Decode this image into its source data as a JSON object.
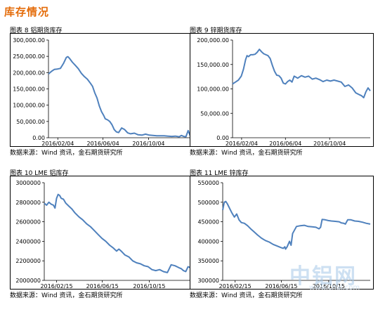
{
  "section": {
    "title": "库存情况"
  },
  "watermark": {
    "logo": "中铝网",
    "url": "www.cnal.com"
  },
  "charts": {
    "alu_shfe": {
      "title": "图表 8 铝期货库存",
      "source": "数据来源：Wind 资讯，金石期货研究所"
    },
    "zinc_shfe": {
      "title": "图表 9 锌期货库存",
      "source": "数据来源：Wind 资讯，金石期货研究所"
    },
    "alu_lme": {
      "title": "图表 10 LME 铝库存",
      "source": "数据来源：Wind 资讯，金石期货研究所"
    },
    "zinc_lme": {
      "title": "图表 11 LME 锌库存",
      "source": "数据来源：Wind 资讯，金石期货研究所"
    }
  },
  "colors": {
    "line": "#4f81bd",
    "axis": "#000000",
    "title_accent": "#e46c0a"
  },
  "chart_data": [
    {
      "id": "alu_shfe",
      "type": "line",
      "title": "图表 8 铝期货库存",
      "xlabel": "",
      "ylabel": "",
      "x_domain": [
        0,
        380
      ],
      "xticks": [
        {
          "x": 25,
          "label": "2016/02/04"
        },
        {
          "x": 146,
          "label": "2016/06/04"
        },
        {
          "x": 268,
          "label": "2016/10/04"
        }
      ],
      "ylim": [
        0,
        300000
      ],
      "yticks": [
        0,
        50000,
        100000,
        150000,
        200000,
        250000,
        300000
      ],
      "ytick_labels": [
        "0.00",
        "50,000.00",
        "100,000.00",
        "150,000.00",
        "200,000.00",
        "250,000.00",
        "300,000.00"
      ],
      "grid": false,
      "series": [
        {
          "x": [
            0,
            8,
            16,
            24,
            32,
            40,
            48,
            52,
            56,
            64,
            72,
            80,
            88,
            96,
            104,
            112,
            118,
            124,
            130,
            136,
            142,
            148,
            152,
            158,
            164,
            170,
            176,
            182,
            188,
            196,
            204,
            212,
            220,
            230,
            240,
            250,
            260,
            270,
            280,
            290,
            300,
            310,
            320,
            330,
            340,
            350,
            356,
            362,
            368,
            374,
            380
          ],
          "y": [
            196000,
            204000,
            210000,
            211000,
            213000,
            228000,
            247000,
            249000,
            244000,
            232000,
            222000,
            212000,
            198000,
            188000,
            180000,
            168000,
            158000,
            138000,
            122000,
            98000,
            80000,
            68000,
            58000,
            55000,
            50000,
            40000,
            25000,
            18000,
            16000,
            30000,
            25000,
            15000,
            12000,
            14000,
            9000,
            8000,
            11000,
            8000,
            7000,
            6000,
            6000,
            6000,
            5000,
            4000,
            5000,
            3000,
            7000,
            4000,
            3000,
            22000,
            5000
          ]
        }
      ]
    },
    {
      "id": "zinc_shfe",
      "type": "line",
      "title": "图表 9 锌期货库存",
      "xlabel": "",
      "ylabel": "",
      "x_domain": [
        0,
        380
      ],
      "xticks": [
        {
          "x": 25,
          "label": "2016/02/04"
        },
        {
          "x": 146,
          "label": "2016/06/04"
        },
        {
          "x": 268,
          "label": "2016/10/04"
        }
      ],
      "ylim": [
        0,
        200000
      ],
      "yticks": [
        0,
        50000,
        100000,
        150000,
        200000
      ],
      "ytick_labels": [
        "0.00",
        "50,000.00",
        "100,000.00",
        "150,000.00",
        "200,000.00"
      ],
      "grid": false,
      "series": [
        {
          "x": [
            0,
            8,
            16,
            24,
            30,
            36,
            40,
            44,
            50,
            56,
            62,
            68,
            74,
            80,
            86,
            92,
            98,
            104,
            110,
            116,
            122,
            128,
            134,
            140,
            146,
            152,
            158,
            164,
            170,
            180,
            190,
            200,
            210,
            220,
            230,
            240,
            250,
            260,
            270,
            280,
            290,
            300,
            310,
            320,
            330,
            340,
            350,
            356,
            362,
            368,
            374,
            380
          ],
          "y": [
            110000,
            114000,
            118000,
            126000,
            140000,
            160000,
            168000,
            166000,
            170000,
            170000,
            171000,
            175000,
            181000,
            176000,
            172000,
            170000,
            168000,
            162000,
            148000,
            136000,
            128000,
            127000,
            122000,
            112000,
            110000,
            115000,
            118000,
            114000,
            126000,
            122000,
            127000,
            124000,
            126000,
            120000,
            122000,
            119000,
            115000,
            118000,
            116000,
            118000,
            116000,
            114000,
            105000,
            108000,
            102000,
            92000,
            88000,
            86000,
            82000,
            94000,
            102000,
            96000
          ]
        }
      ]
    },
    {
      "id": "alu_lme",
      "type": "line",
      "title": "图表 10 LME 铝库存",
      "xlabel": "",
      "ylabel": "",
      "x_domain": [
        0,
        380
      ],
      "xticks": [
        {
          "x": 32,
          "label": "2016/02/15"
        },
        {
          "x": 151,
          "label": "2016/06/15"
        },
        {
          "x": 273,
          "label": "2016/10/15"
        }
      ],
      "ylim": [
        2000000,
        3000000
      ],
      "yticks": [
        2000000,
        2200000,
        2400000,
        2600000,
        2800000,
        3000000
      ],
      "ytick_labels": [
        "2000000",
        "2200000",
        "2400000",
        "2600000",
        "2800000",
        "3000000"
      ],
      "grid": false,
      "series": [
        {
          "x": [
            0,
            6,
            12,
            18,
            24,
            28,
            32,
            36,
            40,
            44,
            50,
            56,
            64,
            72,
            80,
            90,
            100,
            110,
            120,
            130,
            140,
            150,
            160,
            170,
            180,
            188,
            194,
            200,
            210,
            220,
            230,
            240,
            250,
            260,
            270,
            280,
            290,
            300,
            310,
            320,
            330,
            340,
            350,
            356,
            362,
            368,
            374,
            380
          ],
          "y": [
            2790000,
            2770000,
            2800000,
            2780000,
            2770000,
            2740000,
            2840000,
            2880000,
            2870000,
            2840000,
            2830000,
            2790000,
            2760000,
            2730000,
            2690000,
            2650000,
            2620000,
            2580000,
            2550000,
            2510000,
            2470000,
            2430000,
            2400000,
            2360000,
            2330000,
            2300000,
            2320000,
            2300000,
            2260000,
            2240000,
            2200000,
            2180000,
            2170000,
            2150000,
            2140000,
            2110000,
            2100000,
            2110000,
            2090000,
            2080000,
            2160000,
            2150000,
            2130000,
            2120000,
            2100000,
            2090000,
            2140000,
            2130000
          ]
        }
      ]
    },
    {
      "id": "zinc_lme",
      "type": "line",
      "title": "图表 11 LME 锌库存",
      "xlabel": "",
      "ylabel": "",
      "x_domain": [
        0,
        380
      ],
      "xticks": [
        {
          "x": 32,
          "label": "2016/02/15"
        },
        {
          "x": 151,
          "label": "2016/06/15"
        },
        {
          "x": 273,
          "label": "2016/10/15"
        }
      ],
      "ylim": [
        300000,
        550000
      ],
      "yticks": [
        300000,
        350000,
        400000,
        450000,
        500000,
        550000
      ],
      "ytick_labels": [
        "300000",
        "350000",
        "400000",
        "450000",
        "500000",
        "550000"
      ],
      "grid": false,
      "series": [
        {
          "x": [
            0,
            4,
            8,
            12,
            18,
            24,
            30,
            36,
            42,
            48,
            56,
            64,
            72,
            80,
            90,
            100,
            110,
            120,
            130,
            140,
            150,
            156,
            160,
            162,
            166,
            172,
            176,
            180,
            190,
            200,
            210,
            220,
            230,
            240,
            248,
            252,
            256,
            264,
            272,
            280,
            290,
            300,
            306,
            312,
            316,
            322,
            330,
            340,
            350,
            360,
            370,
            380
          ],
          "y": [
            480000,
            500000,
            502000,
            496000,
            484000,
            472000,
            462000,
            470000,
            455000,
            448000,
            446000,
            440000,
            432000,
            425000,
            416000,
            408000,
            402000,
            398000,
            392000,
            388000,
            384000,
            382000,
            386000,
            380000,
            386000,
            400000,
            390000,
            420000,
            438000,
            440000,
            441000,
            438000,
            437000,
            436000,
            432000,
            436000,
            456000,
            455000,
            453000,
            452000,
            451000,
            450000,
            447000,
            446000,
            444000,
            455000,
            455000,
            452000,
            451000,
            449000,
            446000,
            444000
          ]
        }
      ]
    }
  ]
}
